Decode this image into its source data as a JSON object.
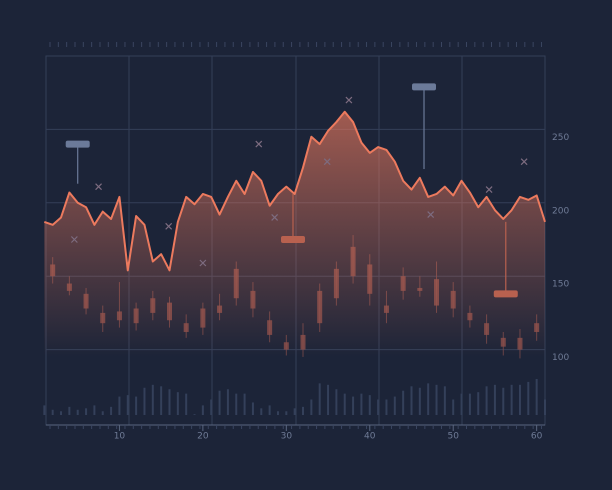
{
  "chart_data": {
    "type": "line",
    "x": [
      1,
      2,
      3,
      4,
      5,
      6,
      7,
      8,
      9,
      10,
      11,
      12,
      13,
      14,
      15,
      16,
      17,
      18,
      19,
      20,
      21,
      22,
      23,
      24,
      25,
      26,
      27,
      28,
      29,
      30,
      31,
      32,
      33,
      34,
      35,
      36,
      37,
      38,
      39,
      40,
      41,
      42,
      43,
      44,
      45,
      46,
      47,
      48,
      49,
      50,
      51,
      52,
      53,
      54,
      55,
      56,
      57,
      58,
      59,
      60,
      61
    ],
    "values": [
      187,
      185,
      190,
      207,
      200,
      197,
      185,
      194,
      189,
      204,
      154,
      191,
      185,
      160,
      165,
      154,
      187,
      204,
      199,
      206,
      204,
      192,
      204,
      215,
      206,
      221,
      215,
      198,
      206,
      211,
      206,
      224,
      245,
      240,
      249,
      255,
      262,
      255,
      241,
      234,
      238,
      236,
      228,
      215,
      209,
      217,
      204,
      206,
      211,
      205,
      215,
      207,
      197,
      204,
      195,
      189,
      195,
      204,
      202,
      205,
      187
    ],
    "color": "#ec7a5e",
    "candles": [
      {
        "x": 2,
        "open": 150,
        "close": 158,
        "high": 163,
        "low": 145
      },
      {
        "x": 4,
        "open": 145,
        "close": 140,
        "high": 150,
        "low": 137
      },
      {
        "x": 6,
        "open": 138,
        "close": 128,
        "high": 142,
        "low": 124
      },
      {
        "x": 8,
        "open": 125,
        "close": 118,
        "high": 130,
        "low": 112
      },
      {
        "x": 10,
        "open": 120,
        "close": 126,
        "high": 146,
        "low": 115
      },
      {
        "x": 12,
        "open": 128,
        "close": 118,
        "high": 132,
        "low": 113
      },
      {
        "x": 14,
        "open": 125,
        "close": 135,
        "high": 140,
        "low": 120
      },
      {
        "x": 16,
        "open": 132,
        "close": 120,
        "high": 136,
        "low": 115
      },
      {
        "x": 18,
        "open": 118,
        "close": 112,
        "high": 124,
        "low": 108
      },
      {
        "x": 20,
        "open": 115,
        "close": 128,
        "high": 132,
        "low": 110
      },
      {
        "x": 22,
        "open": 125,
        "close": 130,
        "high": 138,
        "low": 120
      },
      {
        "x": 24,
        "open": 135,
        "close": 155,
        "high": 160,
        "low": 130
      },
      {
        "x": 26,
        "open": 140,
        "close": 128,
        "high": 146,
        "low": 122
      },
      {
        "x": 28,
        "open": 120,
        "close": 110,
        "high": 126,
        "low": 105
      },
      {
        "x": 30,
        "open": 105,
        "close": 100,
        "high": 110,
        "low": 96
      },
      {
        "x": 32,
        "open": 100,
        "close": 110,
        "high": 118,
        "low": 95
      },
      {
        "x": 34,
        "open": 118,
        "close": 140,
        "high": 145,
        "low": 112
      },
      {
        "x": 36,
        "open": 135,
        "close": 155,
        "high": 160,
        "low": 130
      },
      {
        "x": 38,
        "open": 150,
        "close": 170,
        "high": 178,
        "low": 145
      },
      {
        "x": 40,
        "open": 158,
        "close": 138,
        "high": 165,
        "low": 130
      },
      {
        "x": 42,
        "open": 130,
        "close": 125,
        "high": 140,
        "low": 118
      },
      {
        "x": 44,
        "open": 140,
        "close": 150,
        "high": 156,
        "low": 134
      },
      {
        "x": 46,
        "open": 142,
        "close": 140,
        "high": 150,
        "low": 136
      },
      {
        "x": 48,
        "open": 130,
        "close": 148,
        "high": 160,
        "low": 125
      },
      {
        "x": 50,
        "open": 140,
        "close": 128,
        "high": 146,
        "low": 122
      },
      {
        "x": 52,
        "open": 125,
        "close": 120,
        "high": 130,
        "low": 115
      },
      {
        "x": 54,
        "open": 118,
        "close": 110,
        "high": 124,
        "low": 104
      },
      {
        "x": 56,
        "open": 108,
        "close": 102,
        "high": 112,
        "low": 96
      },
      {
        "x": 58,
        "open": 100,
        "close": 108,
        "high": 114,
        "low": 94
      },
      {
        "x": 60,
        "open": 112,
        "close": 118,
        "high": 124,
        "low": 106
      }
    ],
    "volume": [
      62,
      59,
      58,
      61,
      59,
      60,
      62,
      58,
      61,
      68,
      69,
      68,
      74,
      76,
      75,
      73,
      71,
      70,
      56,
      62,
      66,
      72,
      73,
      70,
      70,
      64,
      60,
      62,
      58,
      58,
      60,
      61,
      66,
      77,
      76,
      73,
      70,
      68,
      70,
      69,
      66,
      66,
      68,
      72,
      75,
      74,
      77,
      76,
      75,
      66,
      70,
      70,
      71,
      75,
      76,
      74,
      76,
      76,
      78,
      80,
      66
    ],
    "markers": [
      {
        "x": 4.6,
        "y": 175
      },
      {
        "x": 7.5,
        "y": 211
      },
      {
        "x": 15.9,
        "y": 184
      },
      {
        "x": 20,
        "y": 159
      },
      {
        "x": 26.7,
        "y": 240
      },
      {
        "x": 28.6,
        "y": 190
      },
      {
        "x": 34.9,
        "y": 228
      },
      {
        "x": 37.5,
        "y": 270
      },
      {
        "x": 47.3,
        "y": 192
      },
      {
        "x": 54.3,
        "y": 209
      },
      {
        "x": 58.5,
        "y": 228
      }
    ],
    "flags": [
      {
        "x": 5,
        "label_y": 240,
        "end_y": 213,
        "color": "#6b7a99"
      },
      {
        "x": 30.8,
        "label_y": 175,
        "end_y": 206,
        "color": "#b8614f"
      },
      {
        "x": 46.5,
        "label_y": 279,
        "end_y": 223,
        "color": "#6b7a99"
      },
      {
        "x": 56.3,
        "label_y": 138,
        "end_y": 187,
        "color": "#b8614f"
      }
    ],
    "xlim": [
      1.2,
      61
    ],
    "ylim": [
      50,
      300
    ],
    "xticks": [
      10,
      20,
      30,
      40,
      50,
      60
    ],
    "yticks": [
      100,
      150,
      200,
      250
    ],
    "grid": true
  }
}
